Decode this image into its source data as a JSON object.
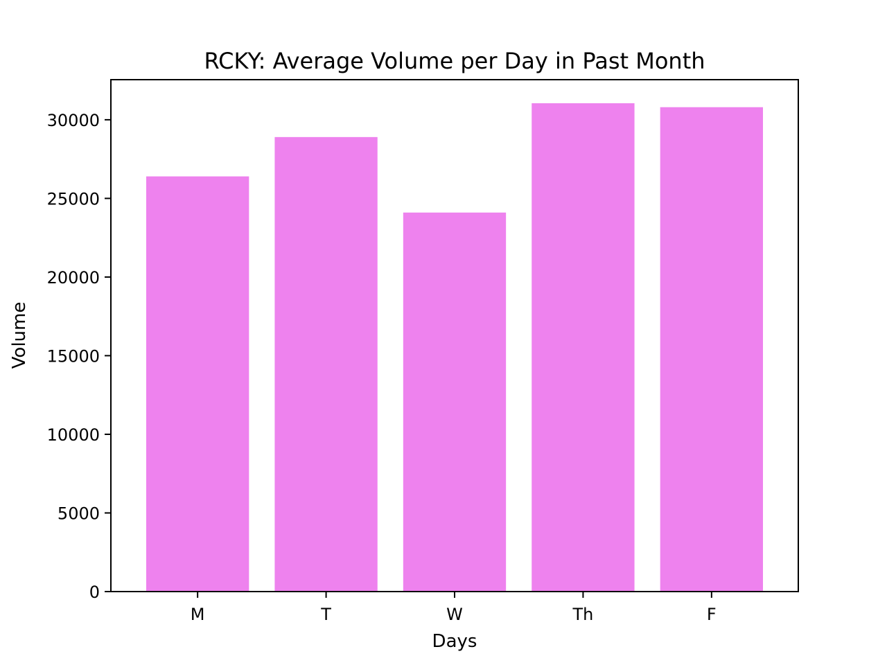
{
  "chart_data": {
    "type": "bar",
    "title": "RCKY: Average Volume per Day in Past Month",
    "xlabel": "Days",
    "ylabel": "Volume",
    "categories": [
      "M",
      "T",
      "W",
      "Th",
      "F"
    ],
    "values": [
      26400,
      28900,
      24100,
      31050,
      30800
    ],
    "ylim": [
      0,
      32550
    ],
    "yticks": [
      0,
      5000,
      10000,
      15000,
      20000,
      25000,
      30000
    ],
    "grid": false,
    "legend": "none",
    "bar_color": "#ee82ee"
  }
}
